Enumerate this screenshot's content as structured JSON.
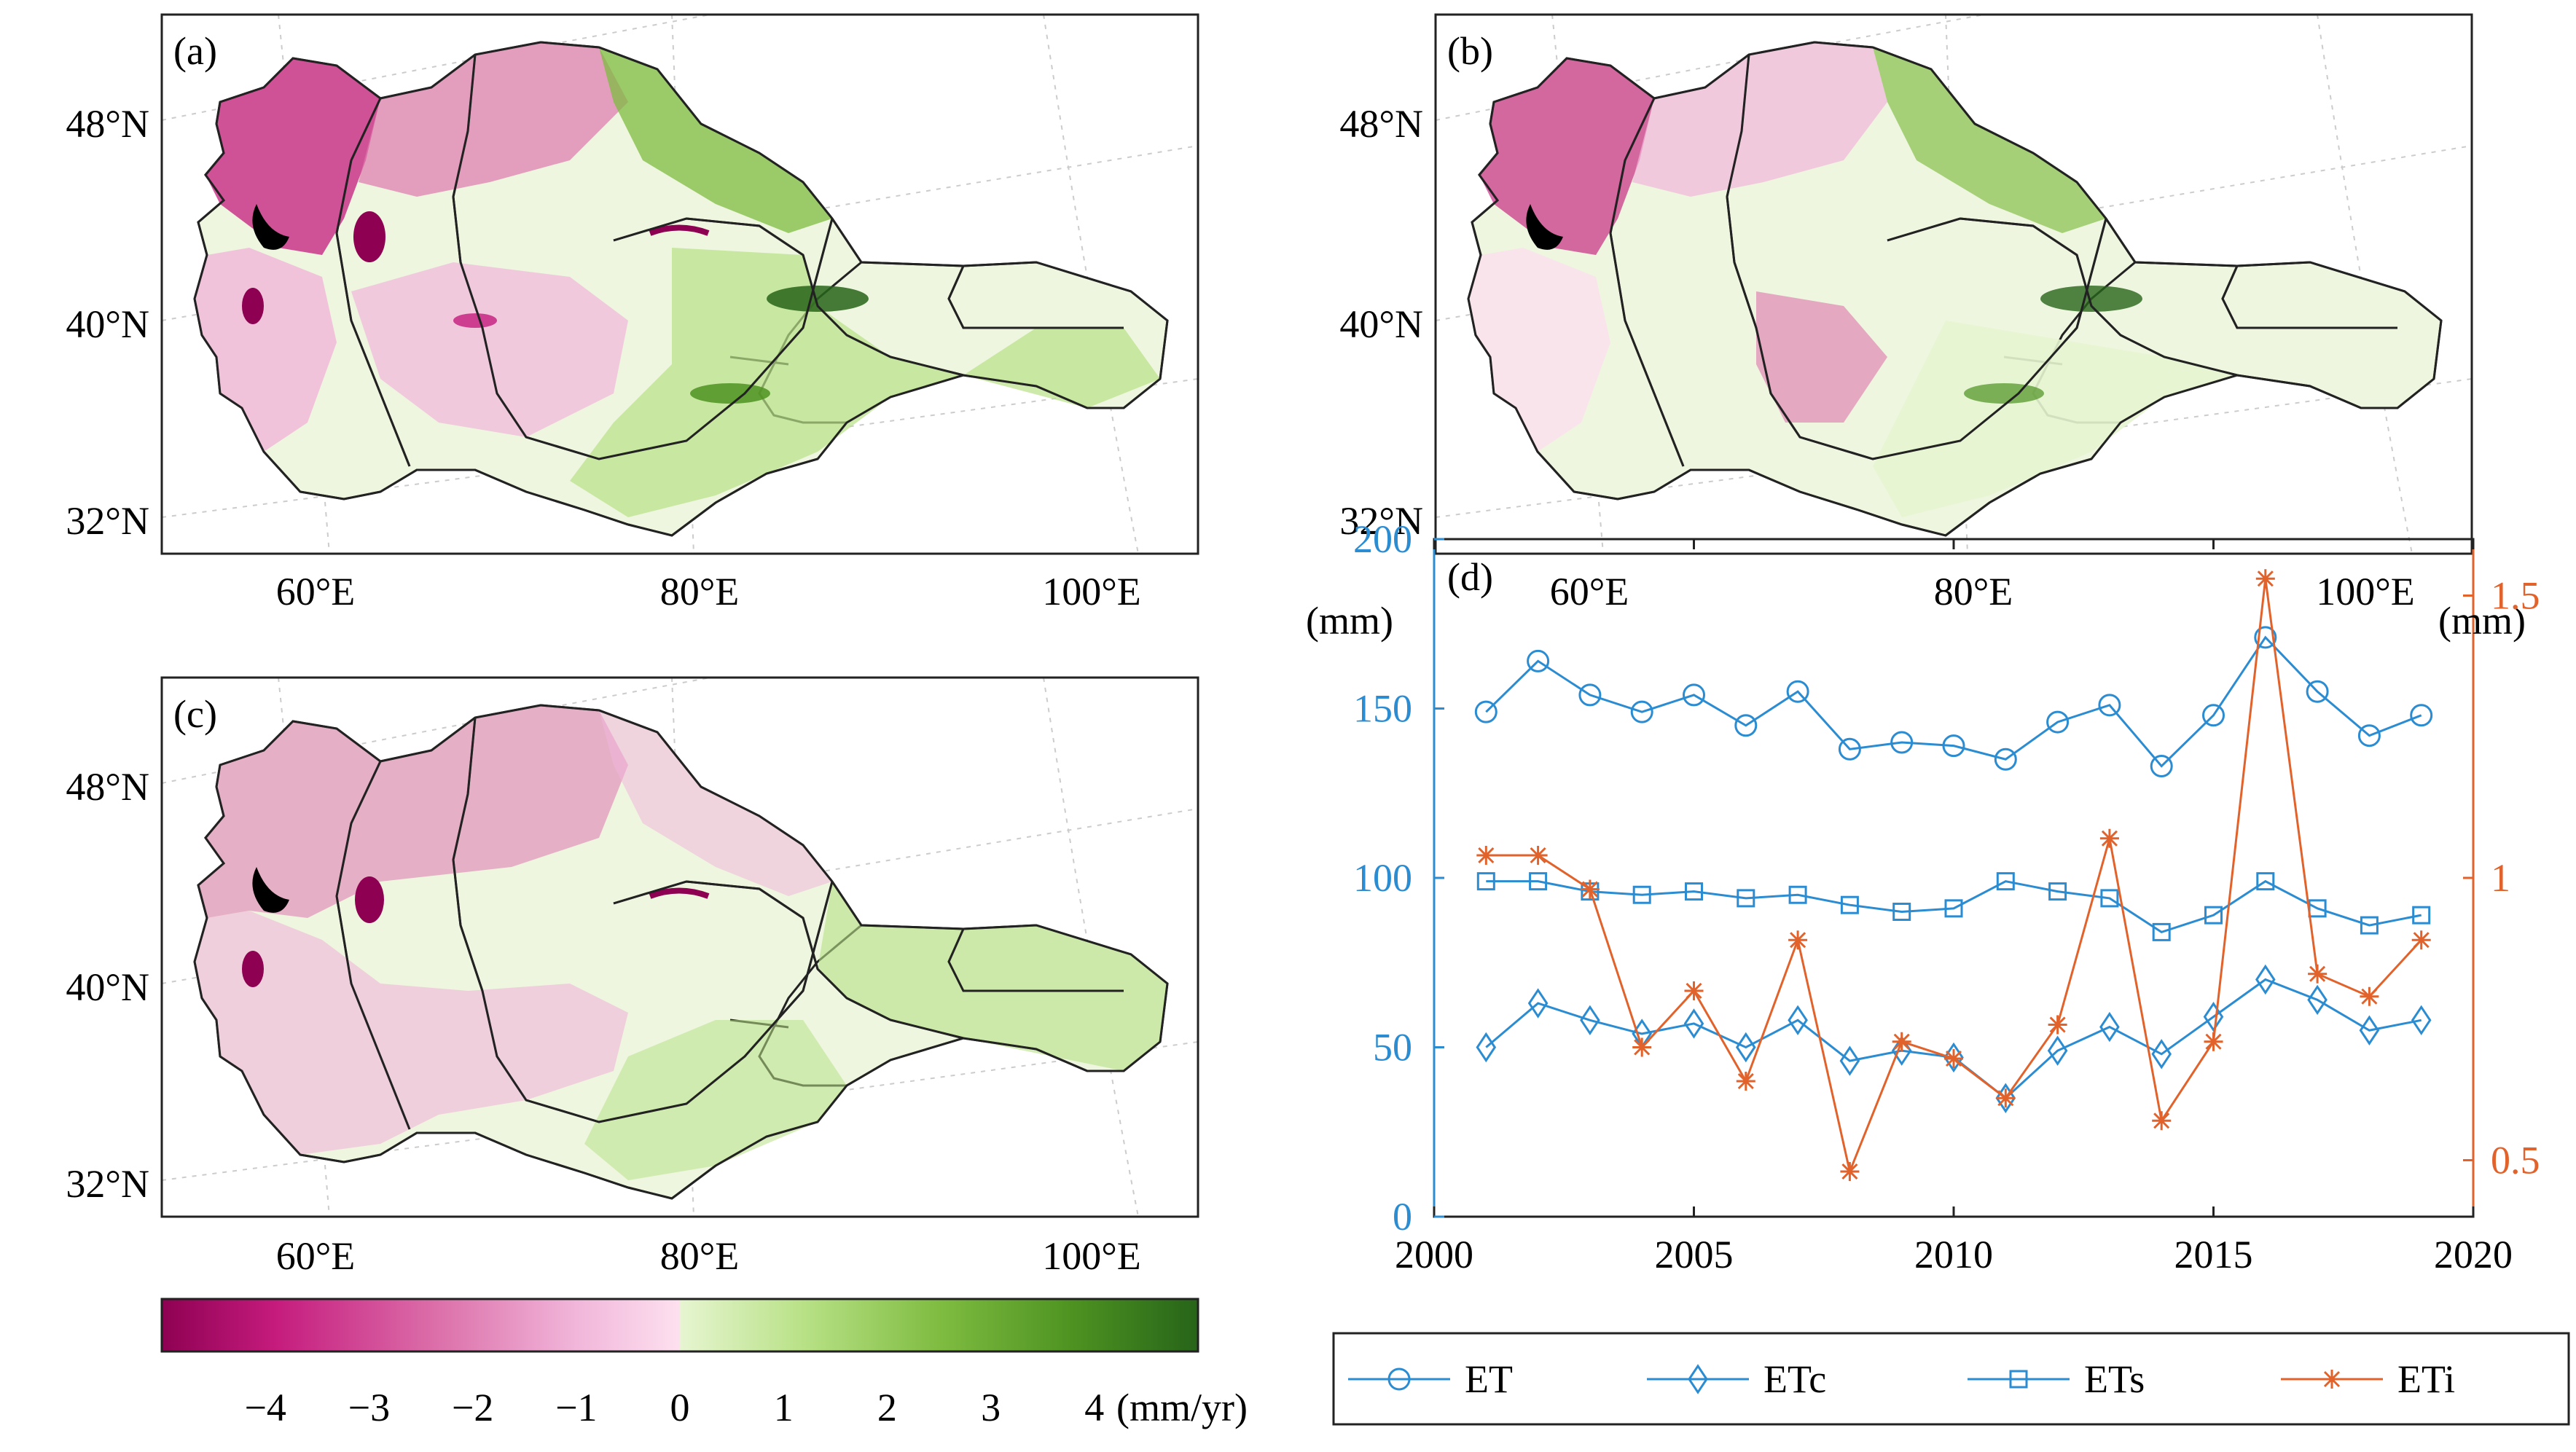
{
  "colors": {
    "et_series": "#2b8cd2",
    "eti_series": "#e2622b",
    "colorbar_stops": [
      "#8e0152",
      "#c51b7d",
      "#de77ae",
      "#f1b6da",
      "#fde0ef",
      "#e6f5d0",
      "#b8e186",
      "#7fbc41",
      "#4d9221",
      "#276419"
    ]
  },
  "maps": [
    {
      "id": "a",
      "label": "(a)"
    },
    {
      "id": "b",
      "label": "(b)"
    },
    {
      "id": "c",
      "label": "(c)"
    }
  ],
  "map_axes": {
    "lat_labels": [
      "48°N",
      "40°N",
      "32°N"
    ],
    "lon_labels": [
      "60°E",
      "80°E",
      "100°E"
    ]
  },
  "colorbar": {
    "ticks": [
      "−4",
      "−3",
      "−2",
      "−1",
      "0",
      "1",
      "2",
      "3",
      "4"
    ],
    "unit": "(mm/yr)",
    "min": -5,
    "max": 5
  },
  "chart_data": {
    "type": "line",
    "panel_label": "(d)",
    "x": [
      2001,
      2002,
      2003,
      2004,
      2005,
      2006,
      2007,
      2008,
      2009,
      2010,
      2011,
      2012,
      2013,
      2014,
      2015,
      2016,
      2017,
      2018,
      2019
    ],
    "xlim": [
      2000,
      2020
    ],
    "xticks": [
      "2000",
      "2005",
      "2010",
      "2015",
      "2020"
    ],
    "ylim_left": [
      0,
      200
    ],
    "yticks_left": [
      "0",
      "50",
      "100",
      "150",
      "200"
    ],
    "ylabel_left": "(mm)",
    "ylim_right": [
      0.4,
      1.6
    ],
    "yticks_right": [
      "0.5",
      "1",
      "1.5"
    ],
    "ylabel_right": "(mm)",
    "series": [
      {
        "name": "ET",
        "axis": "left",
        "marker": "circle",
        "values": [
          149,
          164,
          154,
          149,
          154,
          145,
          155,
          138,
          140,
          139,
          135,
          146,
          151,
          133,
          148,
          171,
          155,
          142,
          148
        ]
      },
      {
        "name": "ETc",
        "axis": "left",
        "marker": "diamond",
        "values": [
          50,
          63,
          58,
          54,
          57,
          50,
          58,
          46,
          49,
          47,
          35,
          49,
          56,
          48,
          59,
          70,
          64,
          55,
          58
        ]
      },
      {
        "name": "ETs",
        "axis": "left",
        "marker": "square",
        "values": [
          99,
          99,
          96,
          95,
          96,
          94,
          95,
          92,
          90,
          91,
          99,
          96,
          94,
          84,
          89,
          99,
          91,
          86,
          89
        ]
      },
      {
        "name": "ETi",
        "axis": "right",
        "marker": "asterisk",
        "values": [
          1.04,
          1.04,
          0.98,
          0.7,
          0.8,
          0.64,
          0.89,
          0.48,
          0.71,
          0.68,
          0.61,
          0.74,
          1.07,
          0.57,
          0.71,
          1.53,
          0.83,
          0.79,
          0.89
        ]
      }
    ]
  }
}
